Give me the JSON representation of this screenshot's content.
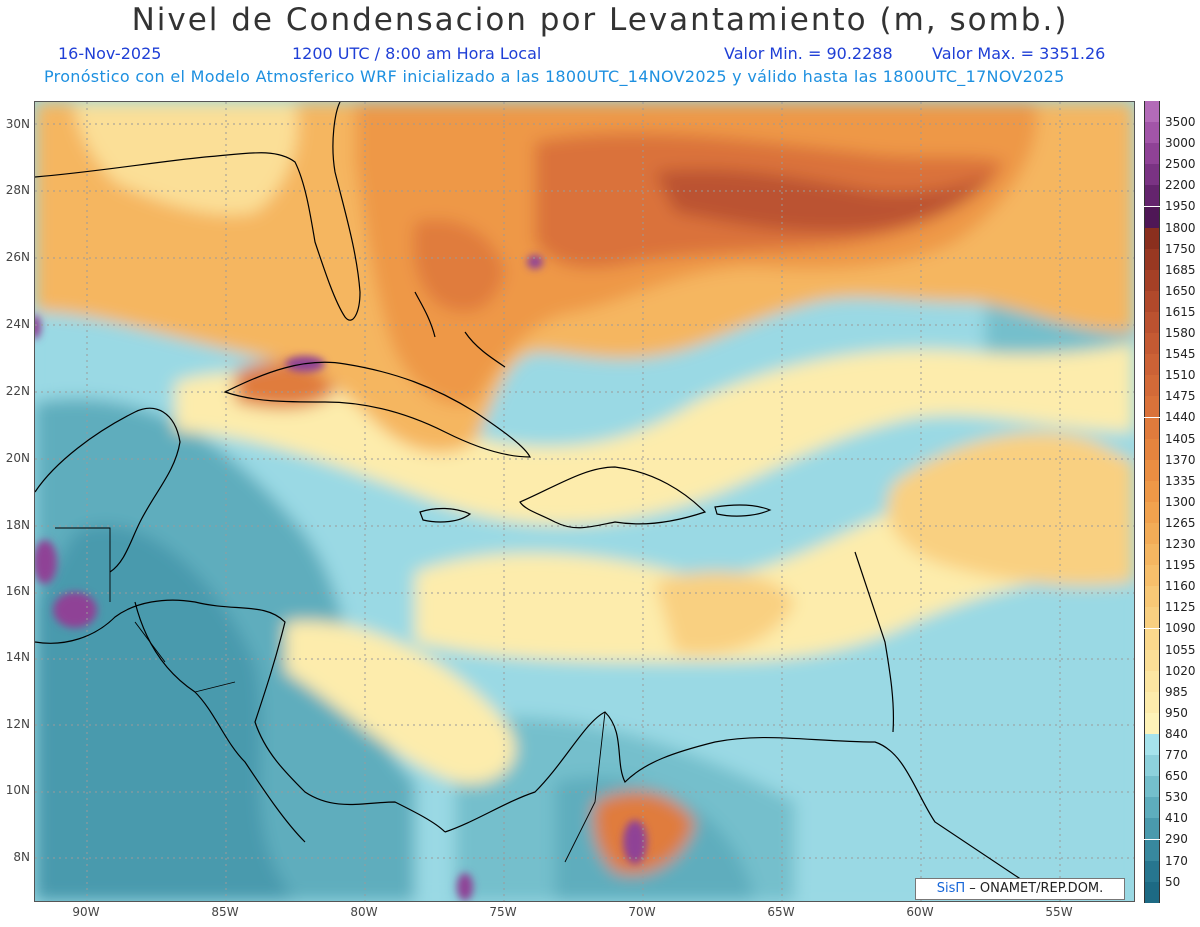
{
  "title": "Nivel de Condensacion por Levantamiento (m, somb.)",
  "date": "16-Nov-2025",
  "time": "1200 UTC / 8:00 am Hora Local",
  "min_value": "Valor Min. = 90.2288",
  "max_value": "Valor Max. = 3351.26",
  "subtitle": "Pronóstico con el Modelo Atmosferico WRF inicializado a las 1800UTC_14NOV2025 y válido hasta las  1800UTC_17NOV2025",
  "credit": {
    "brand": "SisΠ",
    "text": " – ONAMET/REP.DOM."
  },
  "lat_labels": [
    "30N",
    "28N",
    "26N",
    "24N",
    "22N",
    "20N",
    "18N",
    "16N",
    "14N",
    "12N",
    "10N",
    "8N"
  ],
  "lon_labels": [
    "90W",
    "85W",
    "80W",
    "75W",
    "70W",
    "65W",
    "60W",
    "55W"
  ],
  "legend": [
    {
      "label": "3500",
      "color": "#b36bb8"
    },
    {
      "label": "3000",
      "color": "#a255a8"
    },
    {
      "label": "2500",
      "color": "#8f4296"
    },
    {
      "label": "2200",
      "color": "#7a3383"
    },
    {
      "label": "1950",
      "color": "#64246d"
    },
    {
      "label": "1800",
      "color": "#4f1756"
    },
    {
      "label": "1750",
      "color": "#8a2f1e"
    },
    {
      "label": "1685",
      "color": "#983822"
    },
    {
      "label": "1650",
      "color": "#a54026"
    },
    {
      "label": "1615",
      "color": "#b1492b"
    },
    {
      "label": "1580",
      "color": "#bb5230"
    },
    {
      "label": "1545",
      "color": "#c45a33"
    },
    {
      "label": "1510",
      "color": "#cc6236"
    },
    {
      "label": "1475",
      "color": "#d36a38"
    },
    {
      "label": "1440",
      "color": "#da723a"
    },
    {
      "label": "1405",
      "color": "#e07b3c"
    },
    {
      "label": "1370",
      "color": "#e5843e"
    },
    {
      "label": "1335",
      "color": "#ea8e42"
    },
    {
      "label": "1300",
      "color": "#ee9847"
    },
    {
      "label": "1265",
      "color": "#f1a24e"
    },
    {
      "label": "1230",
      "color": "#f3ac57"
    },
    {
      "label": "1195",
      "color": "#f5b661"
    },
    {
      "label": "1160",
      "color": "#f7bf6b"
    },
    {
      "label": "1125",
      "color": "#f8c876"
    },
    {
      "label": "1090",
      "color": "#f9d081"
    },
    {
      "label": "1055",
      "color": "#fad88c"
    },
    {
      "label": "1020",
      "color": "#fbdf97"
    },
    {
      "label": "985",
      "color": "#fce6a2"
    },
    {
      "label": "950",
      "color": "#fdecac"
    },
    {
      "label": "840",
      "color": "#fef3b8"
    },
    {
      "label": "770",
      "color": "#a6e3ec"
    },
    {
      "label": "650",
      "color": "#8dd1dc"
    },
    {
      "label": "530",
      "color": "#74bfcc"
    },
    {
      "label": "410",
      "color": "#5eadbd"
    },
    {
      "label": "290",
      "color": "#4a9aad"
    },
    {
      "label": "170",
      "color": "#38889e"
    },
    {
      "label": "50",
      "color": "#27768f"
    },
    {
      "label": "",
      "color": "#1d6a84"
    }
  ]
}
